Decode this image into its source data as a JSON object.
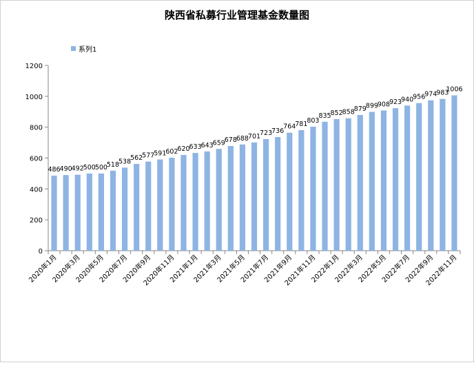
{
  "chart_data": {
    "type": "bar",
    "title": "陕西省私募行业管理基金数量图",
    "xlabel": "",
    "ylabel": "",
    "ylim": [
      0,
      1200
    ],
    "yticks": [
      0,
      200,
      400,
      600,
      800,
      1000,
      1200
    ],
    "grid": false,
    "legend_position": "top-left",
    "bar_color": "#8EB4E3",
    "categories": [
      "2020年1月",
      "2020年2月",
      "2020年3月",
      "2020年4月",
      "2020年5月",
      "2020年6月",
      "2020年7月",
      "2020年8月",
      "2020年9月",
      "2020年10月",
      "2020年11月",
      "2020年12月",
      "2021年1月",
      "2021年2月",
      "2021年3月",
      "2021年4月",
      "2021年5月",
      "2021年6月",
      "2021年7月",
      "2021年8月",
      "2021年9月",
      "2021年10月",
      "2021年11月",
      "2021年12月",
      "2022年1月",
      "2022年2月",
      "2022年3月",
      "2022年4月",
      "2022年5月",
      "2022年6月",
      "2022年7月",
      "2022年8月",
      "2022年9月",
      "2022年10月",
      "2022年11月"
    ],
    "tick_labels_shown": [
      "2020年1月",
      "2020年3月",
      "2020年5月",
      "2020年7月",
      "2020年9月",
      "2020年11月",
      "2021年1月",
      "2021年3月",
      "2021年5月",
      "2021年7月",
      "2021年9月",
      "2021年11月",
      "2022年1月",
      "2022年3月",
      "2022年5月",
      "2022年7月",
      "2022年9月",
      "2022年11月"
    ],
    "series": [
      {
        "name": "系列1",
        "values": [
          486,
          490,
          492,
          500,
          500,
          518,
          538,
          562,
          577,
          591,
          602,
          620,
          633,
          643,
          659,
          678,
          688,
          701,
          723,
          736,
          764,
          781,
          803,
          835,
          852,
          858,
          879,
          899,
          908,
          923,
          940,
          956,
          974,
          983,
          1006
        ]
      }
    ]
  }
}
